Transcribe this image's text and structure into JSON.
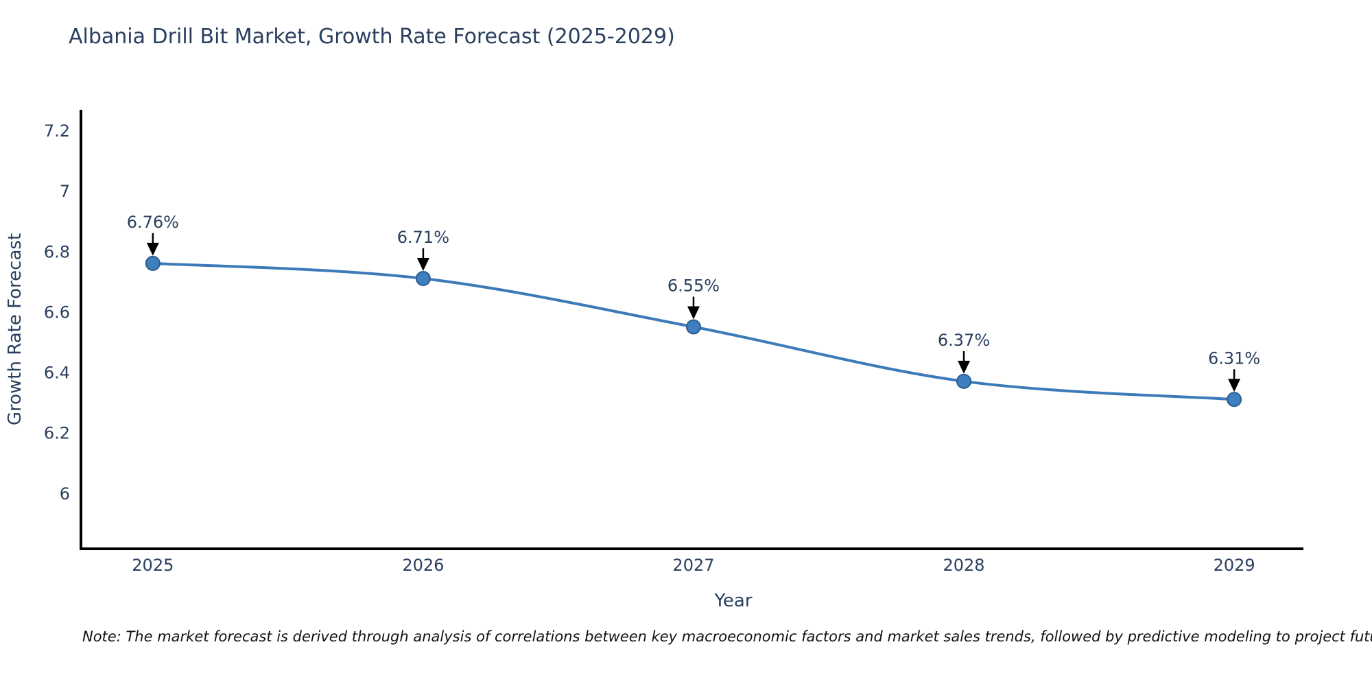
{
  "chart_data": {
    "type": "line",
    "title": "Albania Drill Bit Market, Growth Rate Forecast (2025-2029)",
    "xlabel": "Year",
    "ylabel": "Growth Rate Forecast",
    "x": [
      2025,
      2026,
      2027,
      2028,
      2029
    ],
    "series": [
      {
        "name": "Growth Rate Forecast",
        "values": [
          6.76,
          6.71,
          6.55,
          6.37,
          6.31
        ]
      }
    ],
    "point_labels": [
      "6.76%",
      "6.71%",
      "6.55%",
      "6.37%",
      "6.31%"
    ],
    "yticks": [
      6,
      6.2,
      6.4,
      6.6,
      6.8,
      7,
      7.2
    ],
    "ylim": [
      5.816,
      7.268
    ],
    "xlim": [
      2024.734,
      2029.256
    ],
    "grid": false,
    "legend": "none",
    "line_shape": "spline",
    "colors": {
      "line": "#3d7ab8",
      "marker_fill": "#3f7fbf",
      "marker_edge": "#2a5d8f",
      "axis": "#000000",
      "text": "#2a3f5f",
      "arrow": "#000000"
    }
  },
  "figure": {
    "note": "Note: The market forecast is derived through analysis of correlations between key macroeconomic factors and market sales trends, followed by predictive modeling to project future sales"
  }
}
